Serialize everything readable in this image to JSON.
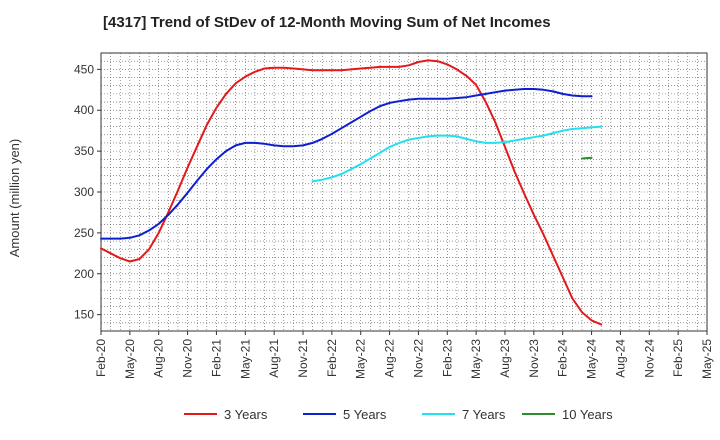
{
  "chart_data": {
    "type": "line",
    "title": "[4317]  Trend of StDev of 12-Month Moving Sum of Net Incomes",
    "ylabel": "Amount (million yen)",
    "xlabel": "",
    "ylim": [
      130,
      470
    ],
    "yticks": [
      150,
      200,
      250,
      300,
      350,
      400,
      450
    ],
    "x_ticks": [
      "Feb-20",
      "May-20",
      "Aug-20",
      "Nov-20",
      "Feb-21",
      "May-21",
      "Aug-21",
      "Nov-21",
      "Feb-22",
      "May-22",
      "Aug-22",
      "Nov-22",
      "Feb-23",
      "May-23",
      "Aug-23",
      "Nov-23",
      "Feb-24",
      "May-24",
      "Aug-24",
      "Nov-24",
      "Feb-25",
      "May-25"
    ],
    "grid": true,
    "legend_position": "bottom",
    "series": [
      {
        "name": "3 Years",
        "color": "#e31a1c",
        "points": [
          [
            "Feb-20",
            231
          ],
          [
            "Mar-20",
            225
          ],
          [
            "Apr-20",
            219
          ],
          [
            "May-20",
            215
          ],
          [
            "Jun-20",
            218
          ],
          [
            "Jul-20",
            230
          ],
          [
            "Aug-20",
            250
          ],
          [
            "Sep-20",
            275
          ],
          [
            "Oct-20",
            302
          ],
          [
            "Nov-20",
            330
          ],
          [
            "Dec-20",
            356
          ],
          [
            "Jan-21",
            382
          ],
          [
            "Feb-21",
            403
          ],
          [
            "Mar-21",
            420
          ],
          [
            "Apr-21",
            433
          ],
          [
            "May-21",
            441
          ],
          [
            "Jun-21",
            447
          ],
          [
            "Jul-21",
            451
          ],
          [
            "Aug-21",
            452
          ],
          [
            "Sep-21",
            452
          ],
          [
            "Oct-21",
            451
          ],
          [
            "Nov-21",
            450
          ],
          [
            "Dec-21",
            449
          ],
          [
            "Jan-22",
            449
          ],
          [
            "Feb-22",
            449
          ],
          [
            "Mar-22",
            449
          ],
          [
            "Apr-22",
            450
          ],
          [
            "May-22",
            451
          ],
          [
            "Jun-22",
            452
          ],
          [
            "Jul-22",
            453
          ],
          [
            "Aug-22",
            453
          ],
          [
            "Sep-22",
            453
          ],
          [
            "Oct-22",
            455
          ],
          [
            "Nov-22",
            459
          ],
          [
            "Dec-22",
            461
          ],
          [
            "Jan-23",
            460
          ],
          [
            "Feb-23",
            456
          ],
          [
            "Mar-23",
            450
          ],
          [
            "Apr-23",
            442
          ],
          [
            "May-23",
            431
          ],
          [
            "Jun-23",
            410
          ],
          [
            "Jul-23",
            385
          ],
          [
            "Aug-23",
            355
          ],
          [
            "Sep-23",
            325
          ],
          [
            "Oct-23",
            298
          ],
          [
            "Nov-23",
            272
          ],
          [
            "Dec-23",
            248
          ],
          [
            "Jan-24",
            222
          ],
          [
            "Feb-24",
            196
          ],
          [
            "Mar-24",
            170
          ],
          [
            "Apr-24",
            153
          ],
          [
            "May-24",
            143
          ],
          [
            "Jun-24",
            138
          ]
        ]
      },
      {
        "name": "5 Years",
        "color": "#0d1fd1",
        "points": [
          [
            "Feb-20",
            243
          ],
          [
            "Mar-20",
            243
          ],
          [
            "Apr-20",
            243
          ],
          [
            "May-20",
            244
          ],
          [
            "Jun-20",
            247
          ],
          [
            "Jul-20",
            253
          ],
          [
            "Aug-20",
            261
          ],
          [
            "Sep-20",
            272
          ],
          [
            "Oct-20",
            285
          ],
          [
            "Nov-20",
            299
          ],
          [
            "Dec-20",
            314
          ],
          [
            "Jan-21",
            328
          ],
          [
            "Feb-21",
            340
          ],
          [
            "Mar-21",
            350
          ],
          [
            "Apr-21",
            357
          ],
          [
            "May-21",
            360
          ],
          [
            "Jun-21",
            360
          ],
          [
            "Jul-21",
            359
          ],
          [
            "Aug-21",
            357
          ],
          [
            "Sep-21",
            356
          ],
          [
            "Oct-21",
            356
          ],
          [
            "Nov-21",
            357
          ],
          [
            "Dec-21",
            360
          ],
          [
            "Jan-22",
            365
          ],
          [
            "Feb-22",
            371
          ],
          [
            "Mar-22",
            378
          ],
          [
            "Apr-22",
            385
          ],
          [
            "May-22",
            392
          ],
          [
            "Jun-22",
            399
          ],
          [
            "Jul-22",
            405
          ],
          [
            "Aug-22",
            409
          ],
          [
            "Sep-22",
            411
          ],
          [
            "Oct-22",
            413
          ],
          [
            "Nov-22",
            414
          ],
          [
            "Dec-22",
            414
          ],
          [
            "Jan-23",
            414
          ],
          [
            "Feb-23",
            414
          ],
          [
            "Mar-23",
            415
          ],
          [
            "Apr-23",
            416
          ],
          [
            "May-23",
            418
          ],
          [
            "Jun-23",
            420
          ],
          [
            "Jul-23",
            422
          ],
          [
            "Aug-23",
            424
          ],
          [
            "Sep-23",
            425
          ],
          [
            "Oct-23",
            426
          ],
          [
            "Nov-23",
            426
          ],
          [
            "Dec-23",
            425
          ],
          [
            "Jan-24",
            423
          ],
          [
            "Feb-24",
            420
          ],
          [
            "Mar-24",
            418
          ],
          [
            "Apr-24",
            417
          ],
          [
            "May-24",
            417
          ]
        ]
      },
      {
        "name": "7 Years",
        "color": "#22e0f0",
        "points": [
          [
            "Dec-21",
            313
          ],
          [
            "Jan-22",
            315
          ],
          [
            "Feb-22",
            318
          ],
          [
            "Mar-22",
            322
          ],
          [
            "Apr-22",
            328
          ],
          [
            "May-22",
            334
          ],
          [
            "Jun-22",
            341
          ],
          [
            "Jul-22",
            348
          ],
          [
            "Aug-22",
            355
          ],
          [
            "Sep-22",
            360
          ],
          [
            "Oct-22",
            364
          ],
          [
            "Nov-22",
            366
          ],
          [
            "Dec-22",
            368
          ],
          [
            "Jan-23",
            369
          ],
          [
            "Feb-23",
            369
          ],
          [
            "Mar-23",
            368
          ],
          [
            "Apr-23",
            365
          ],
          [
            "May-23",
            362
          ],
          [
            "Jun-23",
            360
          ],
          [
            "Jul-23",
            360
          ],
          [
            "Aug-23",
            361
          ],
          [
            "Sep-23",
            363
          ],
          [
            "Oct-23",
            365
          ],
          [
            "Nov-23",
            367
          ],
          [
            "Dec-23",
            369
          ],
          [
            "Jan-24",
            372
          ],
          [
            "Feb-24",
            375
          ],
          [
            "Mar-24",
            377
          ],
          [
            "Apr-24",
            378
          ],
          [
            "May-24",
            379
          ],
          [
            "Jun-24",
            380
          ]
        ]
      },
      {
        "name": "10 Years",
        "color": "#2e8b2e",
        "points": [
          [
            "Apr-24",
            341
          ],
          [
            "May-24",
            342
          ]
        ]
      }
    ]
  }
}
